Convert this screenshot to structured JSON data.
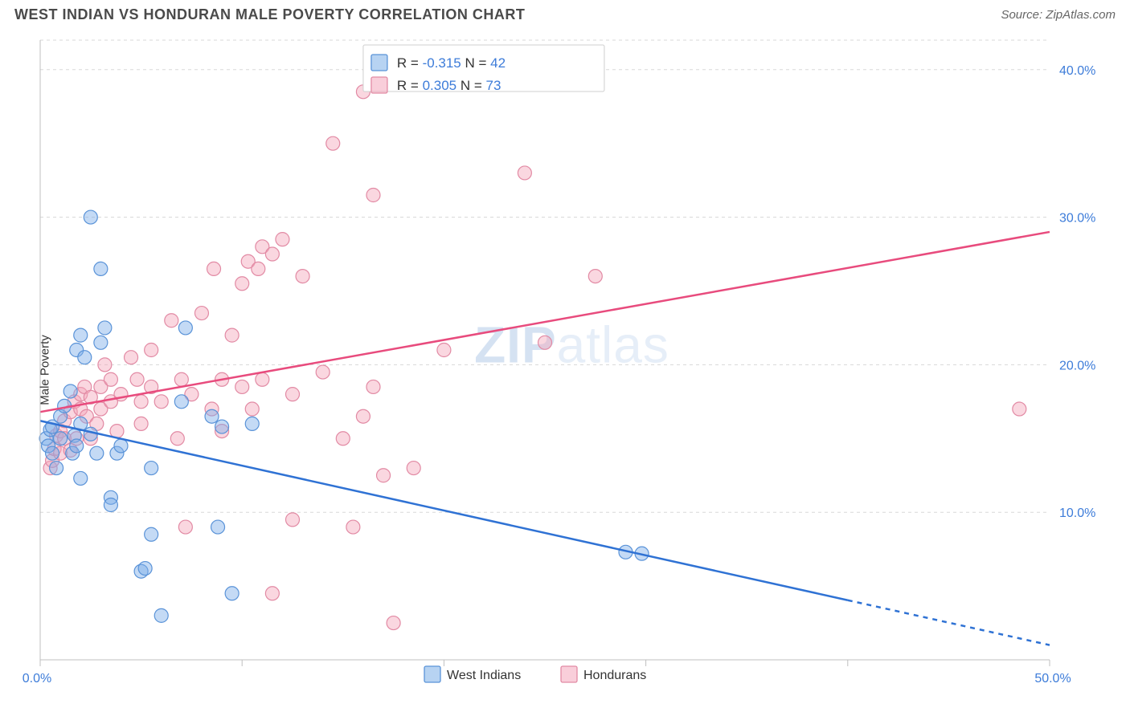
{
  "header": {
    "title": "WEST INDIAN VS HONDURAN MALE POVERTY CORRELATION CHART",
    "source": "Source: ZipAtlas.com"
  },
  "chart": {
    "type": "scatter",
    "ylabel": "Male Poverty",
    "watermark_a": "ZIP",
    "watermark_b": "atlas",
    "background_color": "#ffffff",
    "grid_color": "#d8d8d8",
    "axis_color": "#bfbfbf",
    "label_color": "#3d7cd9",
    "xlim": [
      0,
      50
    ],
    "ylim": [
      0,
      42
    ],
    "ytick_values": [
      10,
      20,
      30,
      40
    ],
    "ytick_labels": [
      "10.0%",
      "20.0%",
      "30.0%",
      "40.0%"
    ],
    "xtick_values": [
      0,
      50
    ],
    "xtick_labels": [
      "0.0%",
      "50.0%"
    ],
    "xtick_minor": [
      10,
      20,
      30,
      40
    ],
    "series": [
      {
        "name": "West Indians",
        "color_fill": "rgba(124,174,232,0.45)",
        "color_stroke": "#5a93d8",
        "trend_color": "#2f72d4",
        "marker_radius": 8.5,
        "R": "-0.315",
        "N": "42",
        "trend": {
          "x0": 0,
          "y0": 16.2,
          "x1": 50,
          "y1": 1.0,
          "dash_from_x": 40
        },
        "points": [
          [
            0.3,
            15.0
          ],
          [
            0.4,
            14.5
          ],
          [
            0.5,
            15.6
          ],
          [
            0.6,
            14.0
          ],
          [
            0.6,
            15.8
          ],
          [
            0.8,
            13.0
          ],
          [
            1.0,
            15.0
          ],
          [
            1.0,
            16.5
          ],
          [
            1.2,
            17.2
          ],
          [
            1.5,
            18.2
          ],
          [
            1.6,
            14.0
          ],
          [
            1.7,
            15.2
          ],
          [
            1.8,
            14.5
          ],
          [
            1.8,
            21.0
          ],
          [
            2.0,
            22.0
          ],
          [
            2.0,
            16.0
          ],
          [
            2.0,
            12.3
          ],
          [
            2.2,
            20.5
          ],
          [
            2.5,
            30.0
          ],
          [
            2.5,
            15.3
          ],
          [
            2.8,
            14.0
          ],
          [
            3.0,
            26.5
          ],
          [
            3.0,
            21.5
          ],
          [
            3.2,
            22.5
          ],
          [
            3.5,
            11.0
          ],
          [
            3.5,
            10.5
          ],
          [
            3.8,
            14.0
          ],
          [
            4.0,
            14.5
          ],
          [
            5.0,
            6.0
          ],
          [
            5.2,
            6.2
          ],
          [
            5.5,
            13.0
          ],
          [
            5.5,
            8.5
          ],
          [
            6.0,
            3.0
          ],
          [
            7.0,
            17.5
          ],
          [
            7.2,
            22.5
          ],
          [
            8.5,
            16.5
          ],
          [
            8.8,
            9.0
          ],
          [
            9.0,
            15.8
          ],
          [
            9.5,
            4.5
          ],
          [
            10.5,
            16.0
          ],
          [
            29.0,
            7.3
          ],
          [
            29.8,
            7.2
          ]
        ]
      },
      {
        "name": "Hondurans",
        "color_fill": "rgba(244,166,187,0.45)",
        "color_stroke": "#e28aa4",
        "trend_color": "#e84b7d",
        "marker_radius": 8.5,
        "R": "0.305",
        "N": "73",
        "trend": {
          "x0": 0,
          "y0": 16.8,
          "x1": 50,
          "y1": 29.0,
          "dash_from_x": 50
        },
        "points": [
          [
            0.5,
            13.0
          ],
          [
            0.6,
            13.5
          ],
          [
            0.7,
            14.3
          ],
          [
            0.8,
            15.2
          ],
          [
            1.0,
            14.0
          ],
          [
            1.0,
            15.5
          ],
          [
            1.2,
            15.0
          ],
          [
            1.2,
            16.2
          ],
          [
            1.5,
            16.8
          ],
          [
            1.5,
            14.2
          ],
          [
            1.7,
            17.5
          ],
          [
            1.8,
            15.0
          ],
          [
            2.0,
            17.0
          ],
          [
            2.0,
            18.0
          ],
          [
            2.2,
            18.5
          ],
          [
            2.3,
            16.5
          ],
          [
            2.5,
            15.0
          ],
          [
            2.5,
            17.8
          ],
          [
            2.8,
            16.0
          ],
          [
            3.0,
            18.5
          ],
          [
            3.0,
            17.0
          ],
          [
            3.2,
            20.0
          ],
          [
            3.5,
            19.0
          ],
          [
            3.5,
            17.5
          ],
          [
            3.8,
            15.5
          ],
          [
            4.0,
            18.0
          ],
          [
            4.5,
            20.5
          ],
          [
            4.8,
            19.0
          ],
          [
            5.0,
            17.5
          ],
          [
            5.0,
            16.0
          ],
          [
            5.5,
            18.5
          ],
          [
            5.5,
            21.0
          ],
          [
            6.0,
            17.5
          ],
          [
            6.5,
            23.0
          ],
          [
            6.8,
            15.0
          ],
          [
            7.0,
            19.0
          ],
          [
            7.2,
            9.0
          ],
          [
            7.5,
            18.0
          ],
          [
            8.0,
            23.5
          ],
          [
            8.5,
            17.0
          ],
          [
            8.6,
            26.5
          ],
          [
            9.0,
            19.0
          ],
          [
            9.0,
            15.5
          ],
          [
            9.5,
            22.0
          ],
          [
            10.0,
            25.5
          ],
          [
            10.0,
            18.5
          ],
          [
            10.3,
            27.0
          ],
          [
            10.5,
            17.0
          ],
          [
            10.8,
            26.5
          ],
          [
            11.0,
            28.0
          ],
          [
            11.0,
            19.0
          ],
          [
            11.5,
            27.5
          ],
          [
            11.5,
            4.5
          ],
          [
            12.0,
            28.5
          ],
          [
            12.5,
            9.5
          ],
          [
            12.5,
            18.0
          ],
          [
            13.0,
            26.0
          ],
          [
            14.0,
            19.5
          ],
          [
            14.5,
            35.0
          ],
          [
            15.0,
            15.0
          ],
          [
            15.5,
            9.0
          ],
          [
            16.0,
            38.5
          ],
          [
            16.0,
            16.5
          ],
          [
            16.5,
            18.5
          ],
          [
            16.5,
            31.5
          ],
          [
            17.0,
            12.5
          ],
          [
            17.5,
            2.5
          ],
          [
            18.5,
            13.0
          ],
          [
            20.0,
            21.0
          ],
          [
            24.0,
            33.0
          ],
          [
            25.0,
            21.5
          ],
          [
            27.5,
            26.0
          ],
          [
            48.5,
            17.0
          ]
        ]
      }
    ],
    "legend": {
      "items": [
        "West Indians",
        "Hondurans"
      ]
    },
    "stats_box": {
      "rows": [
        {
          "swatch": "blue",
          "r_label": "R = ",
          "r_val": "-0.315",
          "n_label": "N = ",
          "n_val": "42"
        },
        {
          "swatch": "pink",
          "r_label": "R = ",
          "r_val": "0.305",
          "n_label": "N = ",
          "n_val": "73"
        }
      ]
    }
  }
}
